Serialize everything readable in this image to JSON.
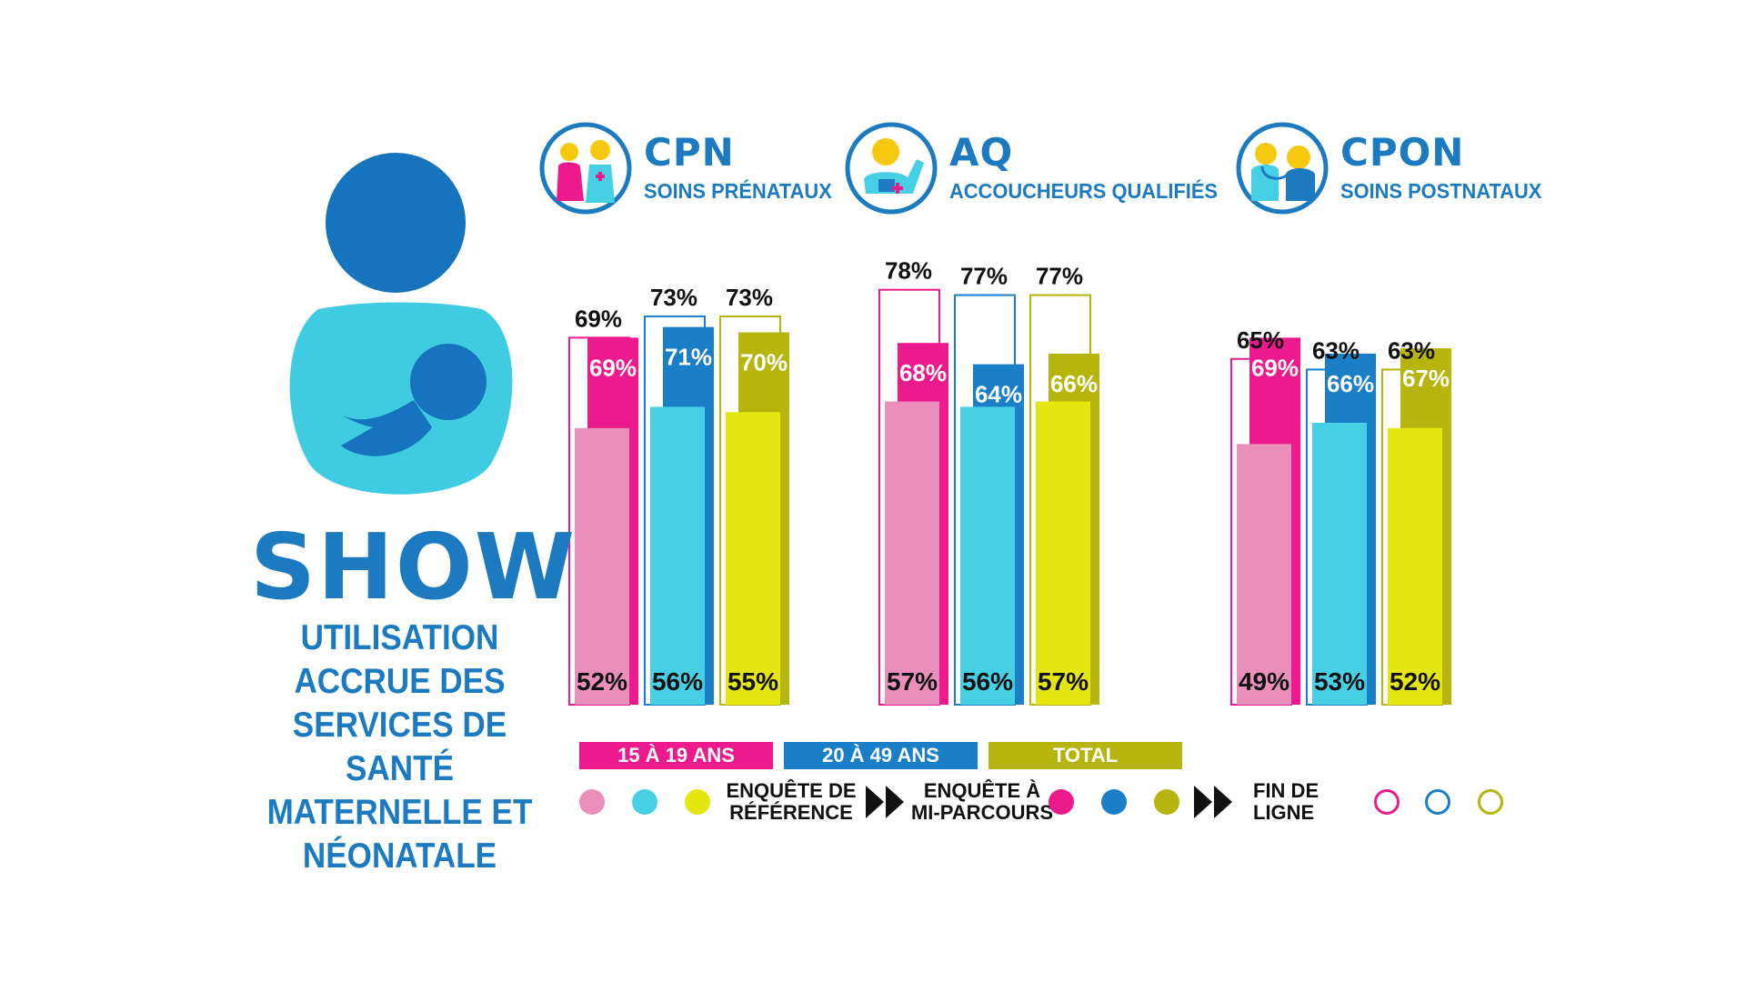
{
  "services": [
    {
      "abbr": "CPN",
      "name": "SOINS PRÉNATAUX",
      "icon": "pregnant-woman-and-nurse-icon"
    },
    {
      "abbr": "AQ",
      "name": "ACCOUCHEURS QUALIFIÉS",
      "icon": "skilled-birth-attendant-icon"
    },
    {
      "abbr": "CPON",
      "name": "SOINS POSTNATAUX",
      "icon": "doctor-with-stethoscope-icon"
    }
  ],
  "brand": {
    "logo_icon": "breastfeeding-mother-icon",
    "title": "SHOW",
    "subtitle": "UTILISATION ACCRUE DES SERVICES DE SANTÉ MATERNELLE ET NÉONATALE"
  },
  "legend": {
    "age_groups": [
      "15 À 19 ANS",
      "20 À 49 ANS",
      "TOTAL"
    ],
    "stage_labels": {
      "baseline": "ENQUÊTE DE RÉFÉRENCE",
      "midterm": "ENQUÊTE À MI-PARCOURS",
      "endline": "FIN DE LIGNE"
    }
  },
  "colors": {
    "brand_blue": "#1c7bc0",
    "age_15_19": "#ec1a8c",
    "age_15_19_baseline": "#ea8fbb",
    "age_20_49": "#1a7fc7",
    "age_20_49_baseline": "#47d0e5",
    "total": "#b6b50d",
    "total_baseline": "#e4e60f",
    "mother_body": "#3fcce3"
  },
  "chart_data": {
    "type": "bar",
    "categories": [
      "CPN",
      "AQ",
      "CPON"
    ],
    "ylim": [
      0,
      100
    ],
    "groups": [
      "15 À 19 ANS",
      "20 À 49 ANS",
      "TOTAL"
    ],
    "series": [
      {
        "name": "ENQUÊTE DE RÉFÉRENCE",
        "values": [
          [
            52,
            56,
            55
          ],
          [
            57,
            56,
            57
          ],
          [
            49,
            53,
            52
          ]
        ]
      },
      {
        "name": "ENQUÊTE À MI-PARCOURS",
        "values": [
          [
            69,
            71,
            70
          ],
          [
            68,
            64,
            66
          ],
          [
            69,
            66,
            67
          ]
        ]
      },
      {
        "name": "FIN DE LIGNE",
        "values": [
          [
            69,
            73,
            73
          ],
          [
            78,
            77,
            77
          ],
          [
            65,
            63,
            63
          ]
        ]
      }
    ]
  }
}
